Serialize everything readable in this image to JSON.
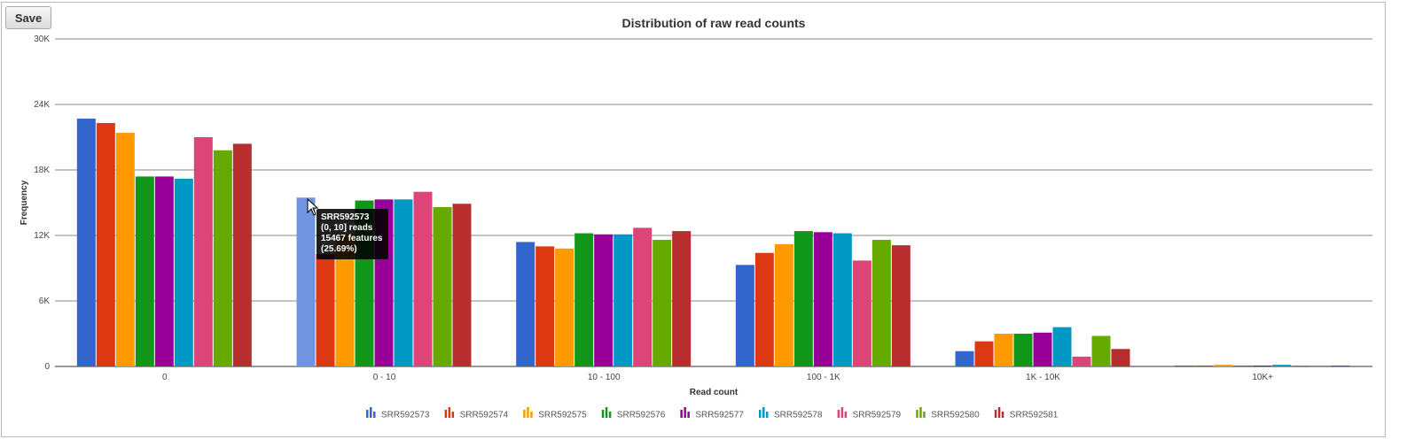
{
  "toolbar": {
    "save_label": "Save"
  },
  "chart_data": {
    "type": "bar",
    "title": "Distribution of raw read counts",
    "xlabel": "Read count",
    "ylabel": "Frequency",
    "ylim": [
      0,
      30000
    ],
    "yticks": [
      {
        "value": 0,
        "label": "0"
      },
      {
        "value": 6000,
        "label": "6K"
      },
      {
        "value": 12000,
        "label": "12K"
      },
      {
        "value": 18000,
        "label": "18K"
      },
      {
        "value": 24000,
        "label": "24K"
      },
      {
        "value": 30000,
        "label": "30K"
      }
    ],
    "grid": true,
    "legend_position": "bottom",
    "categories": [
      "0",
      "0 - 10",
      "10 - 100",
      "100 - 1K",
      "1K - 10K",
      "10K+"
    ],
    "series": [
      {
        "name": "SRR592573",
        "color": "#3366cc",
        "values": [
          22700,
          15467,
          11400,
          9300,
          1400,
          80
        ]
      },
      {
        "name": "SRR592574",
        "color": "#dc3912",
        "values": [
          22300,
          10300,
          11000,
          10400,
          2300,
          80
        ]
      },
      {
        "name": "SRR592575",
        "color": "#ff9900",
        "values": [
          21400,
          12100,
          10800,
          11200,
          3000,
          150
        ]
      },
      {
        "name": "SRR592576",
        "color": "#109618",
        "values": [
          17400,
          15200,
          12200,
          12400,
          3000,
          80
        ]
      },
      {
        "name": "SRR592577",
        "color": "#990099",
        "values": [
          17400,
          15300,
          12100,
          12300,
          3100,
          80
        ]
      },
      {
        "name": "SRR592578",
        "color": "#0099c6",
        "values": [
          17200,
          15300,
          12100,
          12200,
          3600,
          150
        ]
      },
      {
        "name": "SRR592579",
        "color": "#dd4477",
        "values": [
          21000,
          16000,
          12700,
          9700,
          900,
          80
        ]
      },
      {
        "name": "SRR592580",
        "color": "#66aa00",
        "values": [
          19800,
          14600,
          11600,
          11600,
          2800,
          80
        ]
      },
      {
        "name": "SRR592581",
        "color": "#b82e2e",
        "values": [
          20400,
          14900,
          12400,
          11100,
          1600,
          80
        ]
      }
    ],
    "highlight": {
      "series": 0,
      "category": 1,
      "color": "#7094e0"
    }
  },
  "tooltip": {
    "line1": "SRR592573",
    "line2": "(0, 10] reads",
    "line3": "15467 features",
    "line4": "(25.69%)"
  }
}
